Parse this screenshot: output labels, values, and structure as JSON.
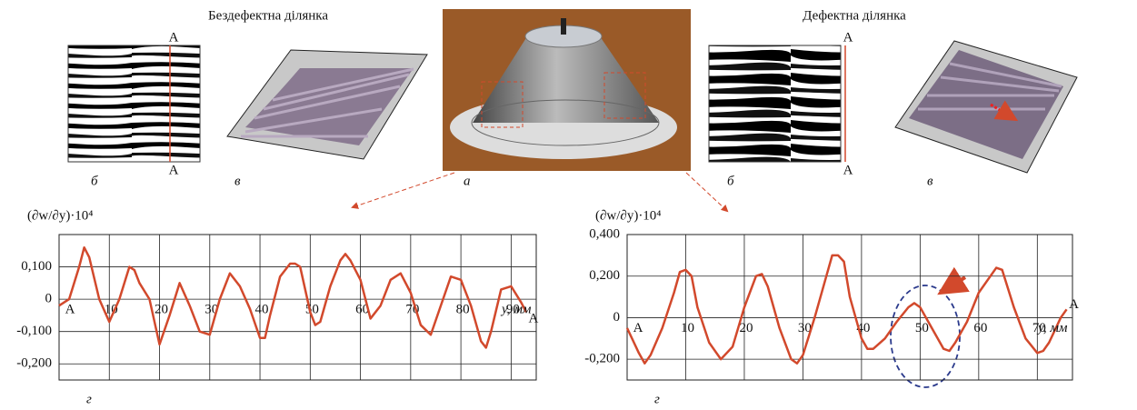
{
  "header": {
    "left_title": "Бездефектна ділянка",
    "right_title": "Дефектна ділянка"
  },
  "panels": {
    "left_b": "б",
    "left_v": "в",
    "center_a": "а",
    "right_b": "б",
    "right_v": "в",
    "section_marks": [
      "А",
      "А",
      "А",
      "А"
    ]
  },
  "chart_data": [
    {
      "type": "line",
      "y_label": "(∂w/∂y)·10⁴",
      "x_label": "y, мм",
      "panel_label": "г",
      "end_labels": [
        "А",
        "А"
      ],
      "color": "#d2492c",
      "grid": true,
      "x": [
        0,
        2,
        4,
        5,
        6,
        8,
        10,
        12,
        14,
        15,
        16,
        18,
        20,
        22,
        24,
        26,
        28,
        30,
        32,
        34,
        36,
        38,
        40,
        41,
        42,
        44,
        46,
        47,
        48,
        50,
        51,
        52,
        54,
        56,
        57,
        58,
        60,
        62,
        64,
        66,
        68,
        70,
        72,
        74,
        76,
        78,
        80,
        82,
        84,
        85,
        86,
        88,
        90,
        92,
        93
      ],
      "values": [
        -0.02,
        0.0,
        0.1,
        0.16,
        0.13,
        0.0,
        -0.07,
        0.0,
        0.1,
        0.09,
        0.05,
        0.0,
        -0.14,
        -0.05,
        0.05,
        -0.02,
        -0.1,
        -0.11,
        0.0,
        0.08,
        0.04,
        -0.03,
        -0.12,
        -0.12,
        -0.05,
        0.07,
        0.11,
        0.11,
        0.1,
        -0.04,
        -0.08,
        -0.07,
        0.04,
        0.12,
        0.14,
        0.12,
        0.06,
        -0.06,
        -0.02,
        0.06,
        0.08,
        0.02,
        -0.08,
        -0.11,
        -0.02,
        0.07,
        0.06,
        -0.02,
        -0.13,
        -0.15,
        -0.1,
        0.03,
        0.04,
        -0.01,
        -0.04
      ],
      "xlim": [
        0,
        95
      ],
      "ylim": [
        -0.25,
        0.2
      ],
      "xticks": [
        10,
        20,
        30,
        40,
        50,
        60,
        70,
        80,
        90
      ],
      "yticks": [
        {
          "value": -0.2,
          "label": "-0,200"
        },
        {
          "value": -0.1,
          "label": "-0,100"
        },
        0,
        {
          "value": 0.1,
          "label": "0,100"
        }
      ]
    },
    {
      "type": "line",
      "y_label": "(∂w/∂y)·10⁴",
      "x_label": "y, мм",
      "panel_label": "г",
      "end_labels": [
        "А",
        "А"
      ],
      "color": "#d2492c",
      "grid": true,
      "x": [
        0,
        2,
        3,
        4,
        6,
        8,
        9,
        10,
        11,
        12,
        14,
        16,
        18,
        20,
        22,
        23,
        24,
        26,
        28,
        29,
        30,
        32,
        34,
        35,
        36,
        37,
        38,
        40,
        41,
        42,
        44,
        46,
        48,
        49,
        50,
        52,
        54,
        55,
        56,
        58,
        60,
        62,
        63,
        64,
        66,
        68,
        70,
        71,
        72,
        74,
        75
      ],
      "values": [
        -0.05,
        -0.17,
        -0.22,
        -0.18,
        -0.05,
        0.12,
        0.22,
        0.23,
        0.2,
        0.05,
        -0.12,
        -0.2,
        -0.14,
        0.05,
        0.2,
        0.21,
        0.15,
        -0.05,
        -0.2,
        -0.22,
        -0.18,
        0.0,
        0.2,
        0.3,
        0.3,
        0.27,
        0.1,
        -0.1,
        -0.15,
        -0.15,
        -0.1,
        -0.02,
        0.05,
        0.07,
        0.05,
        -0.05,
        -0.15,
        -0.16,
        -0.12,
        -0.02,
        0.12,
        0.2,
        0.24,
        0.23,
        0.05,
        -0.1,
        -0.17,
        -0.16,
        -0.12,
        0.0,
        0.04
      ],
      "xlim": [
        0,
        76
      ],
      "ylim": [
        -0.3,
        0.4
      ],
      "xticks": [
        10,
        20,
        30,
        40,
        50,
        60,
        70
      ],
      "yticks": [
        {
          "value": -0.2,
          "label": "-0,200"
        },
        0,
        {
          "value": 0.2,
          "label": "0,200"
        },
        {
          "value": 0.4,
          "label": "0,400"
        }
      ]
    }
  ]
}
